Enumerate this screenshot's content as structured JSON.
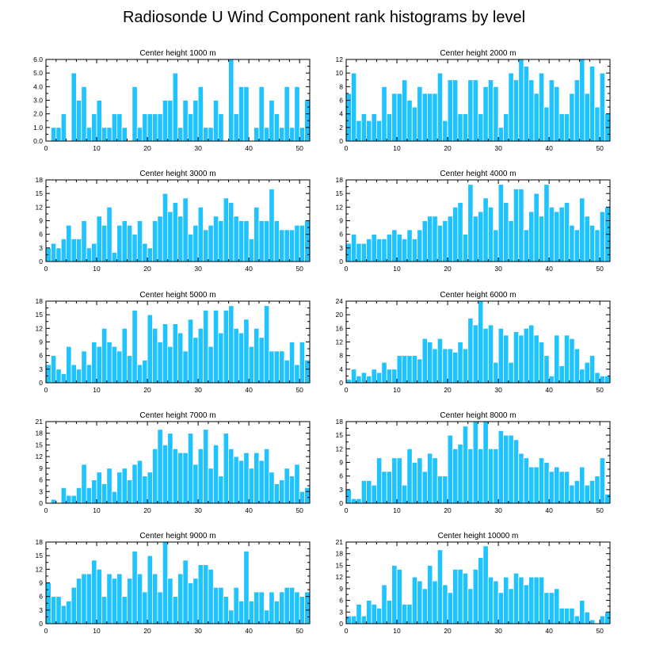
{
  "figure_title": "Radiosonde U Wind Component rank histograms by level",
  "colors": {
    "bar": "#1ec3ff",
    "bar_edge": "#ffffff",
    "axis": "#000000"
  },
  "chart_data": [
    {
      "type": "bar",
      "title": "Center height 1000 m",
      "x": [
        0,
        1,
        2,
        3,
        4,
        5,
        6,
        7,
        8,
        9,
        10,
        11,
        12,
        13,
        14,
        15,
        16,
        17,
        18,
        19,
        20,
        21,
        22,
        23,
        24,
        25,
        26,
        27,
        28,
        29,
        30,
        31,
        32,
        33,
        34,
        35,
        36,
        37,
        38,
        39,
        40,
        41,
        42,
        43,
        44,
        45,
        46,
        47,
        48,
        49,
        50,
        51
      ],
      "values": [
        0,
        1,
        1,
        2,
        0,
        5,
        3,
        4,
        1,
        2,
        3,
        1,
        1,
        2,
        2,
        1,
        0,
        4,
        1,
        2,
        2,
        2,
        2,
        3,
        3,
        5,
        1,
        3,
        2,
        3,
        4,
        1,
        1,
        3,
        2,
        0,
        6,
        2,
        4,
        4,
        0,
        1,
        4,
        1,
        3,
        2,
        1,
        4,
        1,
        4,
        1,
        3
      ],
      "xlim": [
        0,
        52
      ],
      "ylim": [
        0,
        6
      ],
      "xticks": [
        "0",
        "10",
        "20",
        "30",
        "40",
        "50"
      ],
      "yticks": [
        "0.0",
        "1.0",
        "2.0",
        "3.0",
        "4.0",
        "5.0",
        "6.0"
      ]
    },
    {
      "type": "bar",
      "title": "Center height 2000 m",
      "x": [
        0,
        1,
        2,
        3,
        4,
        5,
        6,
        7,
        8,
        9,
        10,
        11,
        12,
        13,
        14,
        15,
        16,
        17,
        18,
        19,
        20,
        21,
        22,
        23,
        24,
        25,
        26,
        27,
        28,
        29,
        30,
        31,
        32,
        33,
        34,
        35,
        36,
        37,
        38,
        39,
        40,
        41,
        42,
        43,
        44,
        45,
        46,
        47,
        48,
        49,
        50,
        51
      ],
      "values": [
        7,
        10,
        3,
        4,
        3,
        4,
        3,
        8,
        4,
        7,
        7,
        9,
        6,
        5,
        8,
        7,
        7,
        7,
        10,
        3,
        9,
        9,
        4,
        4,
        9,
        9,
        4,
        8,
        9,
        8,
        2,
        4,
        10,
        9,
        12,
        11,
        9,
        7,
        10,
        5,
        9,
        8,
        4,
        4,
        7,
        9,
        12,
        7,
        11,
        5,
        10,
        4
      ],
      "xlim": [
        0,
        52
      ],
      "ylim": [
        0,
        12
      ],
      "xticks": [
        "0",
        "10",
        "20",
        "30",
        "40",
        "50"
      ],
      "yticks": [
        "0",
        "2",
        "4",
        "6",
        "8",
        "10",
        "12"
      ]
    },
    {
      "type": "bar",
      "title": "Center height 3000 m",
      "x": [
        0,
        1,
        2,
        3,
        4,
        5,
        6,
        7,
        8,
        9,
        10,
        11,
        12,
        13,
        14,
        15,
        16,
        17,
        18,
        19,
        20,
        21,
        22,
        23,
        24,
        25,
        26,
        27,
        28,
        29,
        30,
        31,
        32,
        33,
        34,
        35,
        36,
        37,
        38,
        39,
        40,
        41,
        42,
        43,
        44,
        45,
        46,
        47,
        48,
        49,
        50,
        51
      ],
      "values": [
        3,
        4,
        3,
        5,
        8,
        5,
        5,
        9,
        3,
        4,
        10,
        8,
        12,
        2,
        8,
        9,
        8,
        6,
        9,
        4,
        3,
        9,
        10,
        15,
        11,
        13,
        10,
        14,
        6,
        8,
        12,
        7,
        8,
        10,
        9,
        14,
        13,
        10,
        9,
        9,
        5,
        12,
        9,
        9,
        16,
        9,
        7,
        7,
        7,
        8,
        8,
        9
      ],
      "xlim": [
        0,
        52
      ],
      "ylim": [
        0,
        18
      ],
      "xticks": [
        "0",
        "10",
        "20",
        "30",
        "40",
        "50"
      ],
      "yticks": [
        "0",
        "3",
        "6",
        "9",
        "12",
        "15",
        "18"
      ]
    },
    {
      "type": "bar",
      "title": "Center height 4000 m",
      "x": [
        0,
        1,
        2,
        3,
        4,
        5,
        6,
        7,
        8,
        9,
        10,
        11,
        12,
        13,
        14,
        15,
        16,
        17,
        18,
        19,
        20,
        21,
        22,
        23,
        24,
        25,
        26,
        27,
        28,
        29,
        30,
        31,
        32,
        33,
        34,
        35,
        36,
        37,
        38,
        39,
        40,
        41,
        42,
        43,
        44,
        45,
        46,
        47,
        48,
        49,
        50,
        51
      ],
      "values": [
        4,
        6,
        4,
        4,
        5,
        6,
        5,
        5,
        6,
        7,
        6,
        5,
        7,
        5,
        7,
        9,
        10,
        10,
        8,
        9,
        10,
        12,
        13,
        6,
        17,
        10,
        11,
        14,
        12,
        7,
        17,
        13,
        9,
        16,
        16,
        7,
        11,
        15,
        10,
        17,
        12,
        11,
        12,
        13,
        8,
        7,
        14,
        10,
        8,
        7,
        11,
        12
      ],
      "xlim": [
        0,
        52
      ],
      "ylim": [
        0,
        18
      ],
      "xticks": [
        "0",
        "10",
        "20",
        "30",
        "40",
        "50"
      ],
      "yticks": [
        "0",
        "3",
        "6",
        "9",
        "12",
        "15",
        "18"
      ]
    },
    {
      "type": "bar",
      "title": "Center height 5000 m",
      "x": [
        0,
        1,
        2,
        3,
        4,
        5,
        6,
        7,
        8,
        9,
        10,
        11,
        12,
        13,
        14,
        15,
        16,
        17,
        18,
        19,
        20,
        21,
        22,
        23,
        24,
        25,
        26,
        27,
        28,
        29,
        30,
        31,
        32,
        33,
        34,
        35,
        36,
        37,
        38,
        39,
        40,
        41,
        42,
        43,
        44,
        45,
        46,
        47,
        48,
        49,
        50,
        51
      ],
      "values": [
        4,
        6,
        3,
        2,
        8,
        4,
        3,
        7,
        4,
        9,
        8,
        12,
        9,
        8,
        7,
        12,
        6,
        16,
        4,
        5,
        15,
        12,
        9,
        13,
        8,
        13,
        11,
        7,
        14,
        10,
        12,
        16,
        8,
        16,
        11,
        16,
        17,
        12,
        11,
        14,
        8,
        12,
        10,
        17,
        7,
        7,
        7,
        5,
        9,
        4,
        9,
        5
      ],
      "xlim": [
        0,
        52
      ],
      "ylim": [
        0,
        18
      ],
      "xticks": [
        "0",
        "10",
        "20",
        "30",
        "40",
        "50"
      ],
      "yticks": [
        "0",
        "3",
        "6",
        "9",
        "12",
        "15",
        "18"
      ]
    },
    {
      "type": "bar",
      "title": "Center height 6000 m",
      "x": [
        0,
        1,
        2,
        3,
        4,
        5,
        6,
        7,
        8,
        9,
        10,
        11,
        12,
        13,
        14,
        15,
        16,
        17,
        18,
        19,
        20,
        21,
        22,
        23,
        24,
        25,
        26,
        27,
        28,
        29,
        30,
        31,
        32,
        33,
        34,
        35,
        36,
        37,
        38,
        39,
        40,
        41,
        42,
        43,
        44,
        45,
        46,
        47,
        48,
        49,
        50,
        51
      ],
      "values": [
        1,
        4,
        2,
        3,
        2,
        4,
        3,
        6,
        4,
        4,
        8,
        8,
        8,
        8,
        7,
        13,
        12,
        10,
        13,
        10,
        10,
        9,
        12,
        10,
        19,
        17,
        24,
        16,
        17,
        6,
        16,
        14,
        6,
        15,
        14,
        16,
        17,
        14,
        12,
        8,
        2,
        14,
        5,
        14,
        13,
        10,
        4,
        6,
        8,
        3,
        2,
        2
      ],
      "xlim": [
        0,
        52
      ],
      "ylim": [
        0,
        24
      ],
      "xticks": [
        "0",
        "10",
        "20",
        "30",
        "40",
        "50"
      ],
      "yticks": [
        "0",
        "4",
        "8",
        "12",
        "16",
        "20",
        "24"
      ]
    },
    {
      "type": "bar",
      "title": "Center height 7000 m",
      "x": [
        0,
        1,
        2,
        3,
        4,
        5,
        6,
        7,
        8,
        9,
        10,
        11,
        12,
        13,
        14,
        15,
        16,
        17,
        18,
        19,
        20,
        21,
        22,
        23,
        24,
        25,
        26,
        27,
        28,
        29,
        30,
        31,
        32,
        33,
        34,
        35,
        36,
        37,
        38,
        39,
        40,
        41,
        42,
        43,
        44,
        45,
        46,
        47,
        48,
        49,
        50,
        51
      ],
      "values": [
        0,
        1,
        0,
        4,
        2,
        2,
        4,
        10,
        4,
        6,
        8,
        5,
        9,
        3,
        8,
        9,
        6,
        10,
        11,
        7,
        8,
        14,
        19,
        15,
        18,
        14,
        13,
        13,
        18,
        10,
        14,
        19,
        9,
        15,
        7,
        18,
        14,
        12,
        11,
        13,
        9,
        13,
        11,
        14,
        8,
        5,
        6,
        9,
        7,
        10,
        3,
        4
      ],
      "xlim": [
        0,
        52
      ],
      "ylim": [
        0,
        21
      ],
      "xticks": [
        "0",
        "10",
        "20",
        "30",
        "40",
        "50"
      ],
      "yticks": [
        "0",
        "3",
        "6",
        "9",
        "12",
        "15",
        "18",
        "21"
      ]
    },
    {
      "type": "bar",
      "title": "Center height 8000 m",
      "x": [
        0,
        1,
        2,
        3,
        4,
        5,
        6,
        7,
        8,
        9,
        10,
        11,
        12,
        13,
        14,
        15,
        16,
        17,
        18,
        19,
        20,
        21,
        22,
        23,
        24,
        25,
        26,
        27,
        28,
        29,
        30,
        31,
        32,
        33,
        34,
        35,
        36,
        37,
        38,
        39,
        40,
        41,
        42,
        43,
        44,
        45,
        46,
        47,
        48,
        49,
        50,
        51
      ],
      "values": [
        3,
        1,
        1,
        5,
        5,
        4,
        10,
        7,
        7,
        10,
        10,
        4,
        12,
        9,
        10,
        7,
        11,
        10,
        6,
        6,
        15,
        12,
        13,
        17,
        12,
        18,
        12,
        18,
        12,
        12,
        16,
        15,
        15,
        14,
        11,
        10,
        8,
        8,
        10,
        9,
        7,
        8,
        7,
        7,
        4,
        5,
        8,
        4,
        5,
        6,
        10,
        2
      ],
      "xlim": [
        0,
        52
      ],
      "ylim": [
        0,
        18
      ],
      "xticks": [
        "0",
        "10",
        "20",
        "30",
        "40",
        "50"
      ],
      "yticks": [
        "0",
        "3",
        "6",
        "9",
        "12",
        "15",
        "18"
      ]
    },
    {
      "type": "bar",
      "title": "Center height 9000 m",
      "x": [
        0,
        1,
        2,
        3,
        4,
        5,
        6,
        7,
        8,
        9,
        10,
        11,
        12,
        13,
        14,
        15,
        16,
        17,
        18,
        19,
        20,
        21,
        22,
        23,
        24,
        25,
        26,
        27,
        28,
        29,
        30,
        31,
        32,
        33,
        34,
        35,
        36,
        37,
        38,
        39,
        40,
        41,
        42,
        43,
        44,
        45,
        46,
        47,
        48,
        49,
        50,
        51
      ],
      "values": [
        9,
        6,
        6,
        4,
        5,
        8,
        10,
        11,
        11,
        14,
        12,
        6,
        11,
        10,
        11,
        6,
        10,
        16,
        11,
        7,
        15,
        11,
        7,
        18,
        10,
        6,
        11,
        14,
        9,
        10,
        13,
        13,
        12,
        8,
        8,
        6,
        3,
        8,
        5,
        16,
        5,
        7,
        7,
        3,
        7,
        5,
        7,
        8,
        8,
        7,
        6,
        7
      ],
      "xlim": [
        0,
        52
      ],
      "ylim": [
        0,
        18
      ],
      "xticks": [
        "0",
        "10",
        "20",
        "30",
        "40",
        "50"
      ],
      "yticks": [
        "0",
        "3",
        "6",
        "9",
        "12",
        "15",
        "18"
      ]
    },
    {
      "type": "bar",
      "title": "Center height 10000 m",
      "x": [
        0,
        1,
        2,
        3,
        4,
        5,
        6,
        7,
        8,
        9,
        10,
        11,
        12,
        13,
        14,
        15,
        16,
        17,
        18,
        19,
        20,
        21,
        22,
        23,
        24,
        25,
        26,
        27,
        28,
        29,
        30,
        31,
        32,
        33,
        34,
        35,
        36,
        37,
        38,
        39,
        40,
        41,
        42,
        43,
        44,
        45,
        46,
        47,
        48,
        49,
        50,
        51
      ],
      "values": [
        2,
        2,
        5,
        2,
        6,
        5,
        4,
        10,
        6,
        15,
        14,
        5,
        5,
        12,
        11,
        9,
        15,
        11,
        19,
        10,
        8,
        14,
        14,
        13,
        9,
        14,
        17,
        20,
        12,
        11,
        8,
        12,
        9,
        13,
        12,
        10,
        12,
        12,
        12,
        8,
        8,
        9,
        4,
        4,
        4,
        2,
        6,
        3,
        1,
        0,
        2,
        3
      ],
      "xlim": [
        0,
        52
      ],
      "ylim": [
        0,
        21
      ],
      "xticks": [
        "0",
        "10",
        "20",
        "30",
        "40",
        "50"
      ],
      "yticks": [
        "0",
        "3",
        "6",
        "9",
        "12",
        "15",
        "18",
        "21"
      ]
    }
  ]
}
